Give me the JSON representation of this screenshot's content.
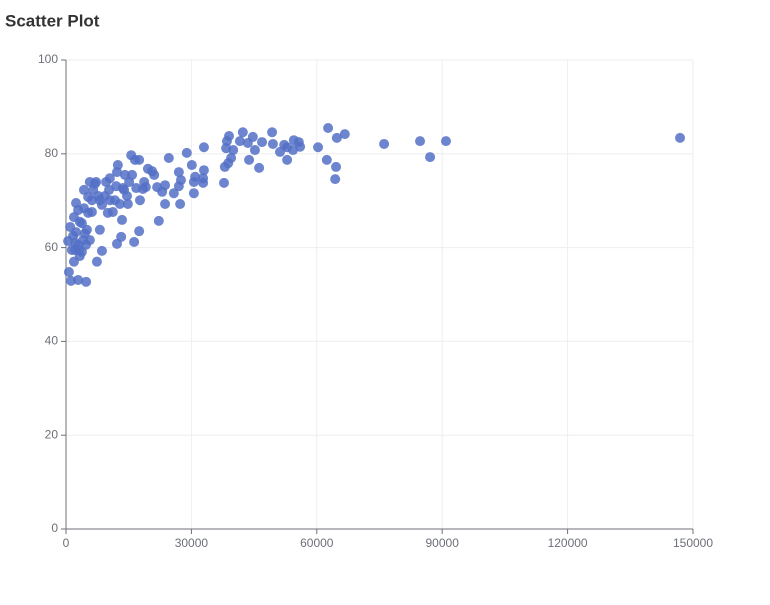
{
  "chart_data": {
    "type": "scatter",
    "title": "Scatter Plot",
    "color": "#5470c6",
    "grid": true,
    "xlim": [
      0,
      150000
    ],
    "xticks": [
      0,
      30000,
      60000,
      90000,
      120000,
      150000
    ],
    "ylim": [
      0,
      100
    ],
    "yticks": [
      0,
      20,
      40,
      60,
      80,
      100
    ],
    "x": [
      146900,
      90900,
      87100,
      84700,
      76100,
      66700,
      64800,
      64600,
      64400,
      62700,
      62400,
      60300,
      55700,
      56000,
      54500,
      54300,
      52900,
      52200,
      52900,
      51200,
      49300,
      49500,
      46900,
      46200,
      45200,
      44700,
      43800,
      43500,
      42300,
      41600,
      40000,
      39500,
      39000,
      38500,
      38300,
      38800,
      38000,
      37800,
      33000,
      33000,
      32800,
      32800,
      30900,
      30600,
      30100,
      30600,
      28900,
      27500,
      27000,
      27000,
      27300,
      25800,
      24600,
      23700,
      23000,
      23700,
      22200,
      21800,
      21100,
      20600,
      19600,
      19100,
      18700,
      18400,
      17500,
      16500,
      17700,
      17500,
      16300,
      15600,
      15800,
      15100,
      14600,
      14100,
      13600,
      13400,
      13200,
      12200,
      12400,
      12200,
      12000,
      11700,
      11200,
      10500,
      10300,
      9600,
      9300,
      10000,
      8600,
      8100,
      7400,
      8600,
      7700,
      7200,
      6500,
      6200,
      5700,
      5300,
      5000,
      4800,
      4300,
      4300,
      3800,
      3300,
      2900,
      2400,
      2400,
      2200,
      1900,
      1400,
      1200,
      1000,
      700,
      500,
      3300,
      2900,
      4800,
      4100,
      5700,
      5300,
      6900,
      1900,
      1700,
      2200,
      3100,
      3800,
      4500,
      2900,
      6200,
      10500,
      12900,
      14800,
      8100,
      13900,
      16800
    ],
    "y": [
      83.4,
      82.7,
      79.3,
      82.7,
      82.1,
      84.2,
      83.4,
      77.2,
      74.6,
      85.5,
      78.7,
      81.4,
      82.5,
      81.5,
      82.9,
      80.8,
      81.4,
      81.9,
      78.7,
      80.4,
      84.6,
      82.1,
      82.5,
      77.0,
      80.8,
      83.6,
      78.7,
      82.3,
      84.6,
      82.7,
      80.8,
      79.1,
      83.8,
      82.7,
      81.2,
      78.0,
      77.2,
      73.8,
      81.4,
      76.5,
      73.8,
      74.8,
      75.1,
      74.0,
      77.6,
      71.6,
      80.2,
      74.4,
      76.1,
      73.1,
      69.3,
      71.6,
      79.1,
      73.3,
      71.9,
      69.3,
      65.7,
      72.9,
      75.5,
      76.3,
      76.8,
      72.9,
      74.0,
      72.5,
      78.7,
      78.7,
      70.1,
      63.5,
      61.2,
      79.7,
      75.5,
      74.0,
      71.0,
      75.5,
      72.7,
      65.9,
      62.3,
      60.8,
      77.6,
      76.1,
      73.1,
      70.1,
      67.6,
      74.8,
      72.3,
      74.0,
      71.0,
      67.4,
      59.3,
      63.8,
      57.0,
      69.1,
      71.0,
      74.0,
      72.3,
      67.6,
      74.0,
      70.8,
      63.8,
      52.7,
      68.4,
      72.3,
      65.2,
      58.2,
      53.1,
      63.3,
      69.5,
      61.0,
      66.5,
      59.5,
      52.9,
      64.4,
      54.8,
      61.4,
      65.5,
      68.0,
      60.6,
      61.6,
      61.6,
      67.4,
      73.6,
      57.0,
      62.5,
      59.5,
      59.5,
      59.1,
      63.0,
      60.6,
      70.1,
      70.1,
      69.3,
      69.3,
      70.1,
      72.3,
      72.7
    ]
  }
}
